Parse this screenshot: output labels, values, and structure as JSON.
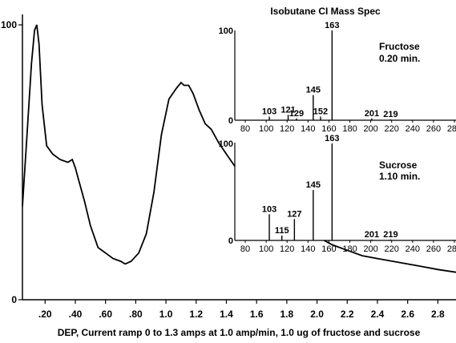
{
  "chart_data": [
    {
      "type": "line",
      "title": "",
      "xlabel": "DEP, Current ramp 0 to 1.3 amps at 1.0 amp/min, 1.0 ug of fructose and sucrose",
      "ylabel": "",
      "xlim": [
        0.05,
        2.92
      ],
      "ylim": [
        0,
        100
      ],
      "x_ticks": [
        ".20",
        ".40",
        ".60",
        ".80",
        "1.0",
        "1.2",
        "1.4",
        "1.6",
        "1.8",
        "2.0",
        "2.2",
        "2.4",
        "2.6",
        "2.8"
      ],
      "y_ticks": [
        "0",
        "100"
      ],
      "grid": false,
      "series": [
        {
          "x": [
            0.05,
            0.08,
            0.11,
            0.13,
            0.145,
            0.16,
            0.18,
            0.21,
            0.25,
            0.3,
            0.35,
            0.38,
            0.4,
            0.42,
            0.46,
            0.5,
            0.55,
            0.6,
            0.65,
            0.7,
            0.73,
            0.77,
            0.82,
            0.87,
            0.92,
            0.97,
            1.02,
            1.07,
            1.1,
            1.12,
            1.15,
            1.18,
            1.22,
            1.26,
            1.3,
            1.35,
            1.4,
            1.45,
            1.5,
            1.55,
            1.6,
            1.7,
            1.8,
            1.9,
            2.0,
            2.1,
            2.2,
            2.3,
            2.4,
            2.5,
            2.6,
            2.7,
            2.8,
            2.92
          ],
          "y": [
            34,
            60,
            86,
            98,
            100,
            93,
            71,
            56,
            53,
            51,
            50,
            51,
            48,
            44,
            36,
            27,
            19,
            17,
            15,
            14,
            13,
            14,
            17,
            24,
            39,
            60,
            73,
            77,
            79,
            78,
            78,
            75,
            69,
            64,
            62,
            57,
            53,
            49,
            45,
            41,
            38,
            34,
            30,
            27,
            23,
            20,
            18,
            16,
            15,
            14,
            13,
            12,
            11,
            10
          ]
        }
      ]
    },
    {
      "type": "bar",
      "title": "Isobutane CI Mass Spec",
      "label": "Fructose",
      "time_label": "0.20 min.",
      "xlim": [
        70,
        280
      ],
      "ylim": [
        0,
        100
      ],
      "x_ticks": [
        "80",
        "100",
        "120",
        "140",
        "160",
        "180",
        "200",
        "220",
        "240",
        "260",
        "280"
      ],
      "y_ticks": [
        "0",
        "100"
      ],
      "x": [
        103,
        121,
        129,
        145,
        152,
        163,
        201,
        219
      ],
      "values": [
        4,
        6,
        2,
        28,
        4,
        100,
        2,
        1
      ],
      "peak_labels": [
        "103",
        "121",
        "129",
        "145",
        "152",
        "163",
        "201",
        "219"
      ]
    },
    {
      "type": "bar",
      "title": "",
      "label": "Sucrose",
      "time_label": "1.10 min.",
      "xlim": [
        70,
        280
      ],
      "ylim": [
        0,
        100
      ],
      "x_ticks": [
        "80",
        "100",
        "120",
        "140",
        "160",
        "180",
        "200",
        "220",
        "240",
        "260",
        "280"
      ],
      "y_ticks": [
        "0",
        "100"
      ],
      "x": [
        103,
        115,
        127,
        145,
        163,
        201,
        219
      ],
      "values": [
        27,
        5,
        22,
        52,
        100,
        1,
        1
      ],
      "peak_labels": [
        "103",
        "115",
        "127",
        "145",
        "163",
        "201",
        "219"
      ]
    }
  ]
}
